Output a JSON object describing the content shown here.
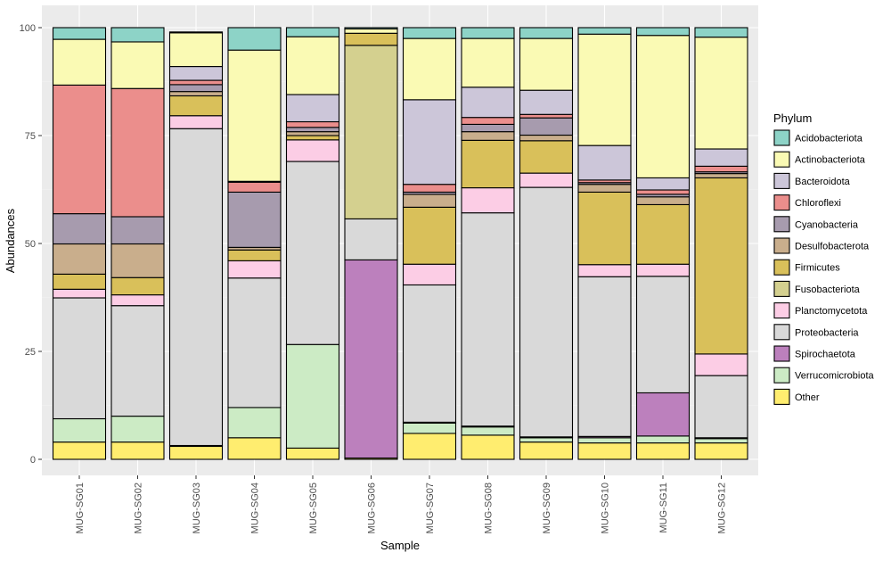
{
  "chart_data": {
    "type": "bar",
    "stacked": true,
    "xlabel": "Sample",
    "ylabel": "Abundances",
    "ylim": [
      0,
      100
    ],
    "yticks": [
      0,
      25,
      50,
      75,
      100
    ],
    "grid": true,
    "legend_position": "right",
    "legend_title": "Phylum",
    "categories": [
      "MUG-SG01",
      "MUG-SG02",
      "MUG-SG03",
      "MUG-SG04",
      "MUG-SG05",
      "MUG-SG06",
      "MUG-SG07",
      "MUG-SG08",
      "MUG-SG09",
      "MUG-SG10",
      "MUG-SG11",
      "MUG-SG12"
    ],
    "series": [
      {
        "name": "Other",
        "color": "#FFED6F",
        "values": [
          4.0,
          4.0,
          3.0,
          5.0,
          2.6,
          0.3,
          6.0,
          5.6,
          4.0,
          3.8,
          3.8,
          3.8
        ]
      },
      {
        "name": "Verrucomicrobiota",
        "color": "#CCEBC5",
        "values": [
          5.4,
          6.0,
          0.2,
          7.0,
          24.0,
          0.0,
          2.4,
          1.9,
          1.0,
          1.2,
          1.6,
          1.0
        ]
      },
      {
        "name": "Spirochaetota",
        "color": "#BC80BD",
        "values": [
          0.0,
          0.0,
          0.0,
          0.0,
          0.0,
          45.9,
          0.2,
          0.2,
          0.2,
          0.3,
          10.0,
          0.2
        ]
      },
      {
        "name": "Proteobacteria",
        "color": "#D9D9D9",
        "values": [
          28.0,
          25.6,
          73.4,
          30.0,
          42.4,
          9.5,
          31.8,
          49.4,
          57.8,
          37.0,
          27.0,
          14.4
        ]
      },
      {
        "name": "Planctomycetota",
        "color": "#FCCDE5",
        "values": [
          2.0,
          2.5,
          3.0,
          4.0,
          5.0,
          0.0,
          4.8,
          5.8,
          3.3,
          2.8,
          2.8,
          5.0
        ]
      },
      {
        "name": "Fusobacteriota",
        "color": "#D4D08F",
        "values": [
          0.0,
          0.0,
          0.0,
          0.0,
          0.0,
          40.2,
          0.0,
          0.0,
          0.0,
          0.0,
          0.0,
          0.0
        ]
      },
      {
        "name": "Firmicutes",
        "color": "#D9C05A",
        "values": [
          3.5,
          4.0,
          4.6,
          2.5,
          1.0,
          2.8,
          13.2,
          11.0,
          7.5,
          16.8,
          13.8,
          40.8
        ]
      },
      {
        "name": "Desulfobacterota",
        "color": "#C9AE8C",
        "values": [
          7.0,
          7.8,
          1.0,
          0.6,
          0.9,
          0.0,
          3.0,
          2.0,
          1.3,
          1.8,
          1.8,
          1.0
        ]
      },
      {
        "name": "Cyanobacteria",
        "color": "#A79BAE",
        "values": [
          7.0,
          6.3,
          1.6,
          12.8,
          1.0,
          0.0,
          0.5,
          1.7,
          4.0,
          0.4,
          0.6,
          0.4
        ]
      },
      {
        "name": "Chloroflexi",
        "color": "#EB8E8C",
        "values": [
          29.8,
          29.7,
          1.0,
          2.3,
          1.3,
          0.0,
          1.8,
          1.6,
          0.8,
          0.6,
          1.0,
          1.3
        ]
      },
      {
        "name": "Bacteroidota",
        "color": "#CCC6D9",
        "values": [
          0.0,
          0.0,
          3.2,
          0.2,
          6.3,
          0.0,
          19.6,
          7.0,
          5.6,
          8.0,
          2.8,
          4.0
        ]
      },
      {
        "name": "Actinobacteriota",
        "color": "#FAFAB4",
        "values": [
          10.6,
          10.8,
          7.8,
          30.4,
          13.4,
          1.0,
          14.2,
          11.3,
          12.0,
          25.8,
          33.0,
          25.9
        ]
      },
      {
        "name": "Acidobacteriota",
        "color": "#8DD3C7",
        "values": [
          2.7,
          3.3,
          0.2,
          5.2,
          2.1,
          0.3,
          2.5,
          2.5,
          2.5,
          1.5,
          1.8,
          2.2
        ]
      }
    ],
    "legend_order": [
      "Acidobacteriota",
      "Actinobacteriota",
      "Bacteroidota",
      "Chloroflexi",
      "Cyanobacteria",
      "Desulfobacterota",
      "Firmicutes",
      "Fusobacteriota",
      "Planctomycetota",
      "Proteobacteria",
      "Spirochaetota",
      "Verrucomicrobiota",
      "Other"
    ]
  }
}
